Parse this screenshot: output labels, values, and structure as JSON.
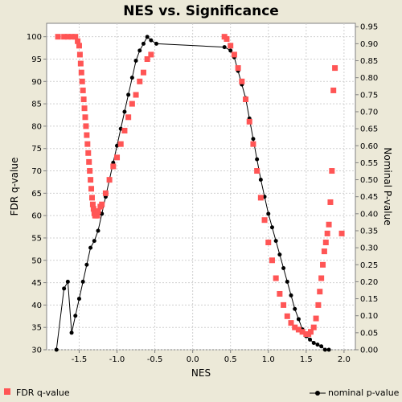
{
  "chart_data": {
    "type": "scatter",
    "title": "NES vs. Significance",
    "xlabel": "NES",
    "ylabel_left": "FDR q-value",
    "ylabel_right": "Nominal P-value",
    "xlim": [
      -1.93,
      2.15
    ],
    "ylim_left": [
      30,
      103
    ],
    "ylim_right": [
      0,
      0.96
    ],
    "x_ticks": [
      "-1.5",
      "-1.0",
      "-0.5",
      "0.0",
      "0.5",
      "1.0",
      "1.5",
      "2.0"
    ],
    "x_tick_values": [
      -1.5,
      -1.0,
      -0.5,
      0.0,
      0.5,
      1.0,
      1.5,
      2.0
    ],
    "y_left_ticks": [
      "30",
      "35",
      "40",
      "45",
      "50",
      "55",
      "60",
      "65",
      "70",
      "75",
      "80",
      "85",
      "90",
      "95",
      "100"
    ],
    "y_left_tick_values": [
      30,
      35,
      40,
      45,
      50,
      55,
      60,
      65,
      70,
      75,
      80,
      85,
      90,
      95,
      100
    ],
    "y_right_ticks": [
      "0.00",
      "0.05",
      "0.10",
      "0.15",
      "0.20",
      "0.25",
      "0.30",
      "0.35",
      "0.40",
      "0.45",
      "0.50",
      "0.55",
      "0.60",
      "0.65",
      "0.70",
      "0.75",
      "0.80",
      "0.85",
      "0.90",
      "0.95"
    ],
    "y_right_tick_values": [
      0.0,
      0.05,
      0.1,
      0.15,
      0.2,
      0.25,
      0.3,
      0.35,
      0.4,
      0.45,
      0.5,
      0.55,
      0.6,
      0.65,
      0.7,
      0.75,
      0.8,
      0.85,
      0.9,
      0.95
    ],
    "grid": true,
    "legend_placement": "bottom",
    "series": [
      {
        "name": "FDR q-value",
        "axis": "left",
        "color": "#ff5555",
        "marker": "square",
        "x": [
          -1.78,
          -1.7,
          -1.65,
          -1.6,
          -1.55,
          -1.52,
          -1.5,
          -1.49,
          -1.48,
          -1.47,
          -1.46,
          -1.45,
          -1.44,
          -1.43,
          -1.42,
          -1.41,
          -1.4,
          -1.39,
          -1.38,
          -1.37,
          -1.36,
          -1.35,
          -1.34,
          -1.33,
          -1.32,
          -1.31,
          -1.3,
          -1.29,
          -1.28,
          -1.27,
          -1.26,
          -1.25,
          -1.22,
          -1.2,
          -1.15,
          -1.1,
          -1.05,
          -1.0,
          -0.95,
          -0.9,
          -0.85,
          -0.8,
          -0.75,
          -0.7,
          -0.65,
          -0.6,
          -0.55,
          0.42,
          0.45,
          0.5,
          0.55,
          0.6,
          0.65,
          0.7,
          0.75,
          0.8,
          0.85,
          0.9,
          0.95,
          1.0,
          1.05,
          1.1,
          1.15,
          1.2,
          1.25,
          1.3,
          1.35,
          1.4,
          1.45,
          1.5,
          1.53,
          1.56,
          1.6,
          1.63,
          1.66,
          1.68,
          1.7,
          1.72,
          1.74,
          1.76,
          1.78,
          1.8,
          1.82,
          1.84,
          1.86,
          1.88,
          1.97
        ],
        "y": [
          100,
          100,
          100,
          100,
          100,
          99,
          98,
          96,
          94,
          92,
          90,
          88,
          86,
          84,
          82,
          80,
          78,
          76,
          74,
          72,
          70,
          68,
          66,
          64,
          62.5,
          61.5,
          60.5,
          60,
          60,
          60.5,
          60,
          61,
          62,
          62.5,
          65,
          68,
          71,
          73,
          76,
          79,
          82,
          85,
          87,
          90,
          92,
          95,
          96,
          100,
          99.5,
          98,
          96,
          93,
          90,
          86,
          81,
          76,
          70,
          64,
          59,
          54,
          50,
          46,
          42.5,
          40,
          37.5,
          36,
          35,
          34.5,
          34,
          33.5,
          33.5,
          34,
          35,
          37,
          40,
          43,
          46,
          49,
          52,
          54,
          56,
          58,
          63,
          70,
          88,
          93,
          56
        ]
      },
      {
        "name": "nominal p-value",
        "axis": "right",
        "color": "#000000",
        "marker": "circle",
        "x": [
          -1.8,
          -1.7,
          -1.65,
          -1.6,
          -1.55,
          -1.5,
          -1.45,
          -1.4,
          -1.35,
          -1.3,
          -1.25,
          -1.2,
          -1.15,
          -1.1,
          -1.05,
          -1.0,
          -0.95,
          -0.9,
          -0.85,
          -0.8,
          -0.75,
          -0.7,
          -0.65,
          -0.6,
          -0.55,
          -0.48,
          0.42,
          0.5,
          0.55,
          0.6,
          0.65,
          0.7,
          0.75,
          0.8,
          0.85,
          0.9,
          0.95,
          1.0,
          1.05,
          1.1,
          1.15,
          1.2,
          1.25,
          1.3,
          1.35,
          1.4,
          1.45,
          1.5,
          1.55,
          1.6,
          1.65,
          1.7,
          1.75,
          1.8
        ],
        "y": [
          0.0,
          0.18,
          0.2,
          0.05,
          0.1,
          0.15,
          0.2,
          0.25,
          0.3,
          0.32,
          0.35,
          0.4,
          0.45,
          0.5,
          0.55,
          0.6,
          0.65,
          0.7,
          0.75,
          0.8,
          0.85,
          0.88,
          0.9,
          0.92,
          0.91,
          0.9,
          0.89,
          0.88,
          0.86,
          0.82,
          0.78,
          0.74,
          0.68,
          0.62,
          0.56,
          0.5,
          0.45,
          0.4,
          0.36,
          0.32,
          0.28,
          0.24,
          0.2,
          0.16,
          0.12,
          0.09,
          0.06,
          0.04,
          0.03,
          0.02,
          0.015,
          0.01,
          0.0,
          0.0
        ]
      }
    ]
  }
}
